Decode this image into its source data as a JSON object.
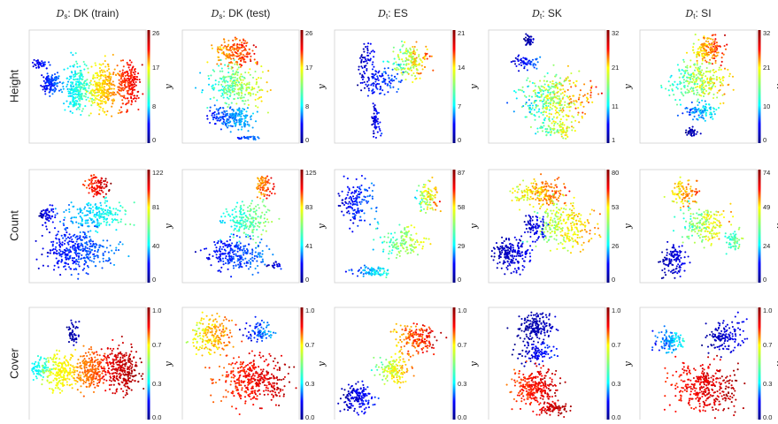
{
  "figure": {
    "columns": [
      {
        "sym": "D",
        "sub": "s",
        "label": ": DK (train)"
      },
      {
        "sym": "D",
        "sub": "s",
        "label": ": DK (test)"
      },
      {
        "sym": "D",
        "sub": "t",
        "label": ": ES"
      },
      {
        "sym": "D",
        "sub": "t",
        "label": ": SK"
      },
      {
        "sym": "D",
        "sub": "t",
        "label": ": SI"
      }
    ],
    "rows": [
      "Height",
      "Count",
      "Cover"
    ],
    "colorbar_label": "y",
    "colormap": [
      "#00007f",
      "#0000ff",
      "#00ffff",
      "#7fff7f",
      "#ffff00",
      "#ff0000",
      "#7f0000"
    ]
  },
  "chart_data": {
    "type": "scatter",
    "description_source": "t-SNE embeddings colored by target value y",
    "panels": [
      [
        {
          "ticks": [
            "26",
            "17",
            "8",
            "0"
          ],
          "vmin": 0,
          "vmax": 26
        },
        {
          "ticks": [
            "26",
            "17",
            "8",
            "0"
          ],
          "vmin": 0,
          "vmax": 26
        },
        {
          "ticks": [
            "21",
            "14",
            "7",
            "0"
          ],
          "vmin": 0,
          "vmax": 21
        },
        {
          "ticks": [
            "32",
            "21",
            "11",
            "1"
          ],
          "vmin": 1,
          "vmax": 32
        },
        {
          "ticks": [
            "32",
            "21",
            "10",
            "0"
          ],
          "vmin": 0,
          "vmax": 32
        }
      ],
      [
        {
          "ticks": [
            "122",
            "81",
            "40",
            "0"
          ],
          "vmin": 0,
          "vmax": 122
        },
        {
          "ticks": [
            "125",
            "83",
            "41",
            "0"
          ],
          "vmin": 0,
          "vmax": 125
        },
        {
          "ticks": [
            "87",
            "58",
            "29",
            "0"
          ],
          "vmin": 0,
          "vmax": 87
        },
        {
          "ticks": [
            "80",
            "53",
            "26",
            "0"
          ],
          "vmin": 0,
          "vmax": 80
        },
        {
          "ticks": [
            "74",
            "49",
            "24",
            "0"
          ],
          "vmin": 0,
          "vmax": 74
        }
      ],
      [
        {
          "ticks": [
            "1.0",
            "0.7",
            "0.3",
            "0.0"
          ],
          "vmin": 0.0,
          "vmax": 1.0
        },
        {
          "ticks": [
            "1.0",
            "0.7",
            "0.3",
            "0.0"
          ],
          "vmin": 0.0,
          "vmax": 1.0
        },
        {
          "ticks": [
            "1.0",
            "0.7",
            "0.3",
            "0.0"
          ],
          "vmin": 0.0,
          "vmax": 1.0
        },
        {
          "ticks": [
            "1.0",
            "0.7",
            "0.3",
            "0.0"
          ],
          "vmin": 0.0,
          "vmax": 1.0
        },
        {
          "ticks": [
            "1.0",
            "0.7",
            "0.3",
            "0.0"
          ],
          "vmin": 0.0,
          "vmax": 1.0
        }
      ]
    ]
  }
}
